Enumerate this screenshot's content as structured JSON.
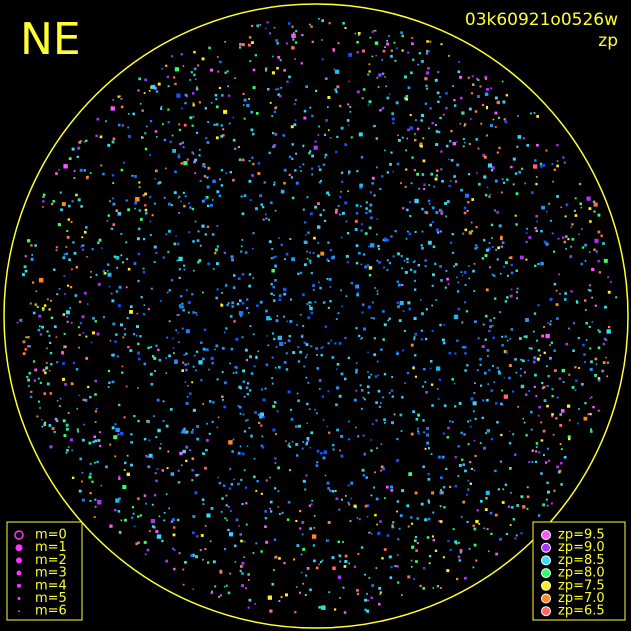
{
  "corner_label": "NE",
  "frame_id": "03k60921o0526w",
  "frame_mode": "zp",
  "magnitude_legend": {
    "items": [
      {
        "label": "m=0"
      },
      {
        "label": "m=1"
      },
      {
        "label": "m=2"
      },
      {
        "label": "m=3"
      },
      {
        "label": "m=4"
      },
      {
        "label": "m=5"
      },
      {
        "label": "m=6"
      }
    ]
  },
  "zp_legend": {
    "items": [
      {
        "label": "zp=9.5",
        "color": "#ff55ff"
      },
      {
        "label": "zp=9.0",
        "color": "#aa33ff"
      },
      {
        "label": "zp=8.5",
        "color": "#33ddff"
      },
      {
        "label": "zp=8.0",
        "color": "#33ff66"
      },
      {
        "label": "zp=7.5",
        "color": "#ffee22"
      },
      {
        "label": "zp=7.0",
        "color": "#ff8822"
      },
      {
        "label": "zp=6.5",
        "color": "#ff6666"
      }
    ]
  }
}
